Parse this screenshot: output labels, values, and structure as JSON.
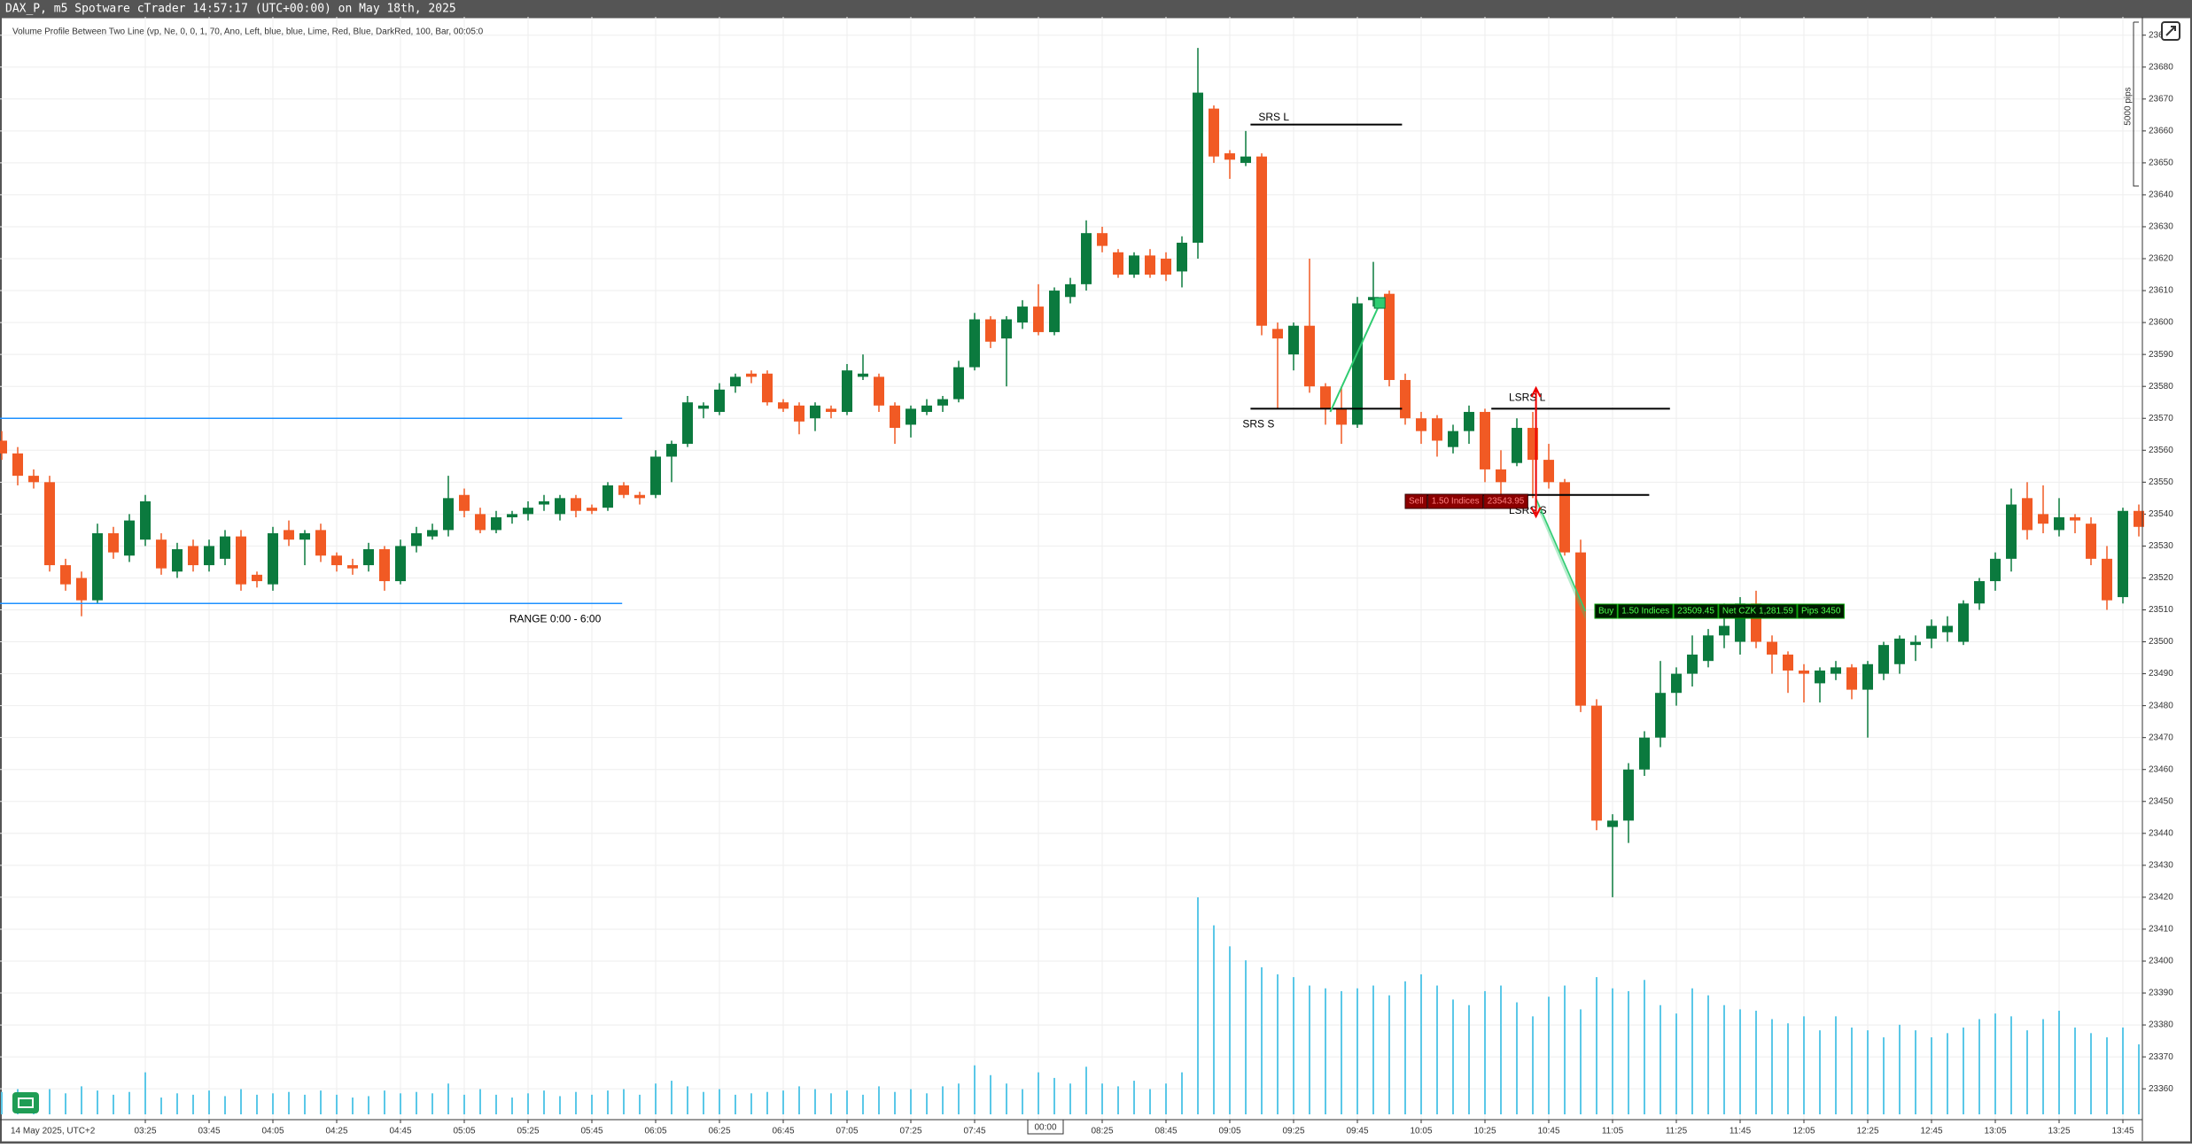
{
  "header": {
    "title": "DAX_P, m5 Spotware cTrader 14:57:17 (UTC+00:00) on May 18th, 2025"
  },
  "chart_data": {
    "type": "candlestick",
    "indicator_label": "Volume Profile Between Two Line (vp, Ne, 0, 0, 1, 70, Ano, Left, blue, blue, Lime, Red, Blue, DarkRed, 100, Bar, 00:05:0",
    "date_label": "14 May 2025, UTC+2",
    "cursor_label": "00:00",
    "scale_label": "5000 pips",
    "up_color": "#0b7a3e",
    "down_color": "#f15a24",
    "volume_color": "#5bc8e8",
    "level_color": "#000000",
    "range_color": "#1e90ff",
    "grid": true,
    "categories": [
      null,
      null,
      null,
      null,
      null,
      null,
      null,
      null,
      null,
      "03:25",
      null,
      null,
      null,
      "03:45",
      null,
      null,
      null,
      "04:05",
      null,
      null,
      null,
      "04:25",
      null,
      null,
      null,
      "04:45",
      null,
      null,
      null,
      "05:05",
      null,
      null,
      null,
      "05:25",
      null,
      null,
      null,
      "05:45",
      null,
      null,
      null,
      "06:05",
      null,
      null,
      null,
      "06:25",
      null,
      null,
      null,
      "06:45",
      null,
      null,
      null,
      "07:05",
      null,
      null,
      null,
      "07:25",
      null,
      null,
      null,
      "07:45",
      null,
      null,
      null,
      "08:05",
      null,
      null,
      null,
      "08:25",
      null,
      null,
      null,
      "08:45",
      null,
      null,
      null,
      "09:05",
      null,
      null,
      null,
      "09:25",
      null,
      null,
      null,
      "09:45",
      null,
      null,
      null,
      "10:05",
      null,
      null,
      null,
      "10:25",
      null,
      null,
      null,
      "10:45",
      null,
      null,
      null,
      "11:05",
      null,
      null,
      null,
      "11:25",
      null,
      null,
      null,
      "11:45",
      null,
      null,
      null,
      "12:05",
      null,
      null,
      null,
      "12:25",
      null,
      null,
      null,
      "12:45",
      null,
      null,
      null,
      "13:05",
      null,
      null,
      null,
      "13:25",
      null,
      null,
      null,
      "13:45",
      null
    ],
    "open": [
      23563,
      23559,
      23552,
      23550,
      23524,
      23520,
      23513,
      23534,
      23527,
      23532,
      23532,
      23522,
      23530,
      23524,
      23526,
      23533,
      23521,
      23518,
      23535,
      23532,
      23535,
      23527,
      23524,
      23524,
      23529,
      23519,
      23530,
      23533,
      23535,
      23546,
      23540,
      23535,
      23539,
      23540,
      23543,
      23540,
      23545,
      23542,
      23542,
      23549,
      23546,
      23546,
      23558,
      23562,
      23573,
      23572,
      23580,
      23584,
      23584,
      23575,
      23574,
      23570,
      23573,
      23572,
      23583,
      23583,
      23574,
      23568,
      23572,
      23574,
      23576,
      23586,
      23601,
      23595,
      23600,
      23605,
      23597,
      23608,
      23612,
      23628,
      23622,
      23615,
      23621,
      23620,
      23616,
      23625,
      23667,
      23653,
      23650,
      23652,
      23598,
      23590,
      23599,
      23580,
      23573,
      23568,
      23607,
      23609,
      23582,
      23570,
      23570,
      23561,
      23566,
      23572,
      23554,
      23556,
      23567,
      23557,
      23550,
      23528,
      23480,
      23442,
      23444,
      23460,
      23470,
      23484,
      23490,
      23494,
      23502,
      23500,
      23512,
      23500,
      23496,
      23491,
      23487,
      23490,
      23492,
      23485,
      23490,
      23493,
      23499,
      23501,
      23503,
      23500,
      23512,
      23519,
      23526,
      23545,
      23540,
      23535,
      23539,
      23537,
      23526,
      23514,
      23541
    ],
    "high": [
      23566,
      23561,
      23554,
      23552,
      23526,
      23522,
      23537,
      23536,
      23540,
      23546,
      23534,
      23531,
      23532,
      23532,
      23535,
      23535,
      23522,
      23536,
      23538,
      23535,
      23537,
      23528,
      23526,
      23531,
      23530,
      23532,
      23536,
      23537,
      23552,
      23548,
      23542,
      23541,
      23541,
      23544,
      23546,
      23546,
      23546,
      23543,
      23550,
      23550,
      23547,
      23560,
      23563,
      23577,
      23575,
      23581,
      23584,
      23585,
      23585,
      23576,
      23575,
      23575,
      23574,
      23587,
      23590,
      23584,
      23575,
      23574,
      23576,
      23577,
      23588,
      23603,
      23602,
      23602,
      23607,
      23612,
      23611,
      23614,
      23632,
      23630,
      23623,
      23622,
      23623,
      23622,
      23627,
      23686,
      23668,
      23654,
      23660,
      23653,
      23600,
      23600,
      23620,
      23581,
      23580,
      23608,
      23619,
      23610,
      23584,
      23572,
      23571,
      23568,
      23574,
      23573,
      23560,
      23570,
      23572,
      23562,
      23551,
      23532,
      23482,
      23446,
      23462,
      23472,
      23494,
      23492,
      23502,
      23504,
      23512,
      23514,
      23516,
      23502,
      23497,
      23493,
      23492,
      23494,
      23493,
      23494,
      23500,
      23502,
      23502,
      23507,
      23508,
      23513,
      23520,
      23528,
      23548,
      23550,
      23549,
      23545,
      23540,
      23539,
      23530,
      23542,
      23543
    ],
    "low": [
      23557,
      23549,
      23548,
      23522,
      23516,
      23508,
      23512,
      23526,
      23525,
      23530,
      23521,
      23520,
      23522,
      23522,
      23524,
      23516,
      23517,
      23516,
      23530,
      23524,
      23525,
      23522,
      23521,
      23522,
      23516,
      23518,
      23528,
      23532,
      23533,
      23539,
      23534,
      23534,
      23537,
      23538,
      23541,
      23538,
      23539,
      23540,
      23541,
      23545,
      23543,
      23545,
      23550,
      23561,
      23570,
      23571,
      23578,
      23581,
      23574,
      23572,
      23565,
      23566,
      23570,
      23571,
      23582,
      23572,
      23562,
      23564,
      23571,
      23572,
      23575,
      23585,
      23592,
      23580,
      23598,
      23596,
      23596,
      23606,
      23610,
      23622,
      23614,
      23614,
      23614,
      23613,
      23611,
      23620,
      23650,
      23645,
      23649,
      23596,
      23573,
      23585,
      23578,
      23568,
      23562,
      23567,
      23605,
      23580,
      23568,
      23562,
      23558,
      23559,
      23562,
      23550,
      23546,
      23555,
      23545,
      23548,
      23527,
      23478,
      23441,
      23420,
      23437,
      23458,
      23467,
      23480,
      23486,
      23492,
      23498,
      23496,
      23498,
      23490,
      23484,
      23481,
      23481,
      23488,
      23482,
      23470,
      23488,
      23490,
      23494,
      23498,
      23500,
      23499,
      23510,
      23516,
      23522,
      23532,
      23534,
      23533,
      23534,
      23524,
      23510,
      23512,
      23533
    ],
    "close": [
      23559,
      23552,
      23550,
      23524,
      23518,
      23513,
      23534,
      23528,
      23538,
      23544,
      23523,
      23529,
      23524,
      23530,
      23533,
      23518,
      23519,
      23534,
      23532,
      23534,
      23527,
      23524,
      23523,
      23529,
      23519,
      23530,
      23534,
      23535,
      23545,
      23541,
      23535,
      23539,
      23540,
      23542,
      23544,
      23545,
      23541,
      23541,
      23549,
      23546,
      23545,
      23558,
      23562,
      23575,
      23574,
      23579,
      23583,
      23583,
      23575,
      23573,
      23569,
      23574,
      23572,
      23585,
      23584,
      23574,
      23567,
      23573,
      23574,
      23576,
      23586,
      23601,
      23594,
      23601,
      23605,
      23597,
      23610,
      23612,
      23628,
      23624,
      23615,
      23621,
      23615,
      23615,
      23625,
      23672,
      23652,
      23651,
      23652,
      23599,
      23595,
      23599,
      23580,
      23573,
      23568,
      23606,
      23608,
      23582,
      23570,
      23566,
      23563,
      23566,
      23572,
      23554,
      23550,
      23567,
      23557,
      23550,
      23528,
      23480,
      23444,
      23444,
      23460,
      23470,
      23484,
      23490,
      23496,
      23502,
      23505,
      23512,
      23500,
      23496,
      23491,
      23490,
      23491,
      23492,
      23485,
      23493,
      23499,
      23501,
      23500,
      23505,
      23505,
      23512,
      23519,
      23526,
      23543,
      23535,
      23537,
      23539,
      23538,
      23526,
      23513,
      23541,
      23536
    ],
    "volume": [
      16,
      18,
      14,
      18,
      15,
      20,
      17,
      14,
      16,
      30,
      12,
      15,
      14,
      17,
      13,
      18,
      14,
      15,
      16,
      14,
      17,
      14,
      12,
      13,
      17,
      15,
      16,
      15,
      22,
      14,
      18,
      14,
      12,
      15,
      17,
      13,
      16,
      14,
      17,
      18,
      14,
      22,
      24,
      20,
      16,
      18,
      14,
      15,
      16,
      17,
      20,
      18,
      15,
      17,
      14,
      20,
      16,
      18,
      15,
      20,
      22,
      35,
      28,
      22,
      18,
      30,
      26,
      22,
      34,
      22,
      20,
      24,
      18,
      22,
      30,
      155,
      135,
      120,
      110,
      105,
      100,
      98,
      92,
      90,
      88,
      90,
      92,
      85,
      95,
      100,
      92,
      82,
      78,
      88,
      92,
      80,
      70,
      84,
      92,
      75,
      98,
      90,
      88,
      96,
      78,
      72,
      90,
      85,
      78,
      75,
      74,
      68,
      65,
      70,
      60,
      70,
      62,
      60,
      55,
      64,
      60,
      55,
      58,
      62,
      68,
      72,
      70,
      60,
      68,
      74,
      62,
      58,
      55,
      62,
      50
    ],
    "ylim": [
      23352,
      23692
    ],
    "yticks": [
      23360,
      23370,
      23380,
      23390,
      23400,
      23410,
      23420,
      23430,
      23440,
      23450,
      23460,
      23470,
      23480,
      23490,
      23500,
      23510,
      23520,
      23530,
      23540,
      23550,
      23560,
      23570,
      23580,
      23590,
      23600,
      23610,
      23620,
      23630,
      23640,
      23650,
      23660,
      23670,
      23680,
      23690
    ],
    "range": {
      "label": "RANGE 0:00 - 6:00",
      "high": 23570,
      "low": 23512
    },
    "levels": [
      {
        "label": "SRS L",
        "value": 23662
      },
      {
        "label": "SRS S",
        "value": 23573
      },
      {
        "label": "LSRS L",
        "value": 23573
      },
      {
        "label": "LSRS S",
        "value": 23546
      }
    ],
    "trades": [
      {
        "parts": [
          "Sell",
          "1.50 Indices",
          "23543.95"
        ]
      },
      {
        "parts": [
          "Buy",
          "1.50 Indices",
          "23509.45",
          "Net CZK 1,281.59",
          "Pips 3450"
        ]
      }
    ]
  }
}
